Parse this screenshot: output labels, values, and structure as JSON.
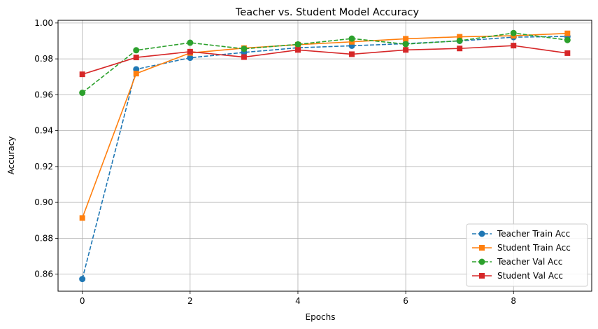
{
  "chart_data": {
    "type": "line",
    "title": "Teacher vs. Student Model Accuracy",
    "xlabel": "Epochs",
    "ylabel": "Accuracy",
    "xlim": [
      -0.45,
      9.45
    ],
    "ylim": [
      0.8505,
      1.0015
    ],
    "xticks": [
      0,
      2,
      4,
      6,
      8
    ],
    "yticks": [
      0.86,
      0.88,
      0.9,
      0.92,
      0.94,
      0.96,
      0.98,
      1.0
    ],
    "ytick_labels": [
      "0.86",
      "0.88",
      "0.90",
      "0.92",
      "0.94",
      "0.96",
      "0.98",
      "1.00"
    ],
    "grid": true,
    "legend_position": "lower-right",
    "x": [
      0,
      1,
      2,
      3,
      4,
      5,
      6,
      7,
      8,
      9
    ],
    "series": [
      {
        "name": "Teacher Train Acc",
        "color": "#1f77b4",
        "linestyle": "dashed",
        "marker": "circle",
        "values": [
          0.8573,
          0.9742,
          0.9806,
          0.9836,
          0.9862,
          0.9873,
          0.9885,
          0.99,
          0.9921,
          0.9925
        ]
      },
      {
        "name": "Student Train Acc",
        "color": "#ff7f0e",
        "linestyle": "solid",
        "marker": "square",
        "values": [
          0.8913,
          0.9718,
          0.9833,
          0.986,
          0.9879,
          0.9895,
          0.9912,
          0.9923,
          0.9929,
          0.9942
        ]
      },
      {
        "name": "Teacher Val Acc",
        "color": "#2ca02c",
        "linestyle": "dashed",
        "marker": "circle",
        "values": [
          0.9611,
          0.9848,
          0.989,
          0.9856,
          0.9881,
          0.9913,
          0.9882,
          0.9901,
          0.9944,
          0.9905
        ]
      },
      {
        "name": "Student Val Acc",
        "color": "#d62728",
        "linestyle": "solid",
        "marker": "square",
        "values": [
          0.9714,
          0.9808,
          0.984,
          0.981,
          0.985,
          0.9826,
          0.985,
          0.9858,
          0.9874,
          0.9832
        ]
      }
    ]
  }
}
